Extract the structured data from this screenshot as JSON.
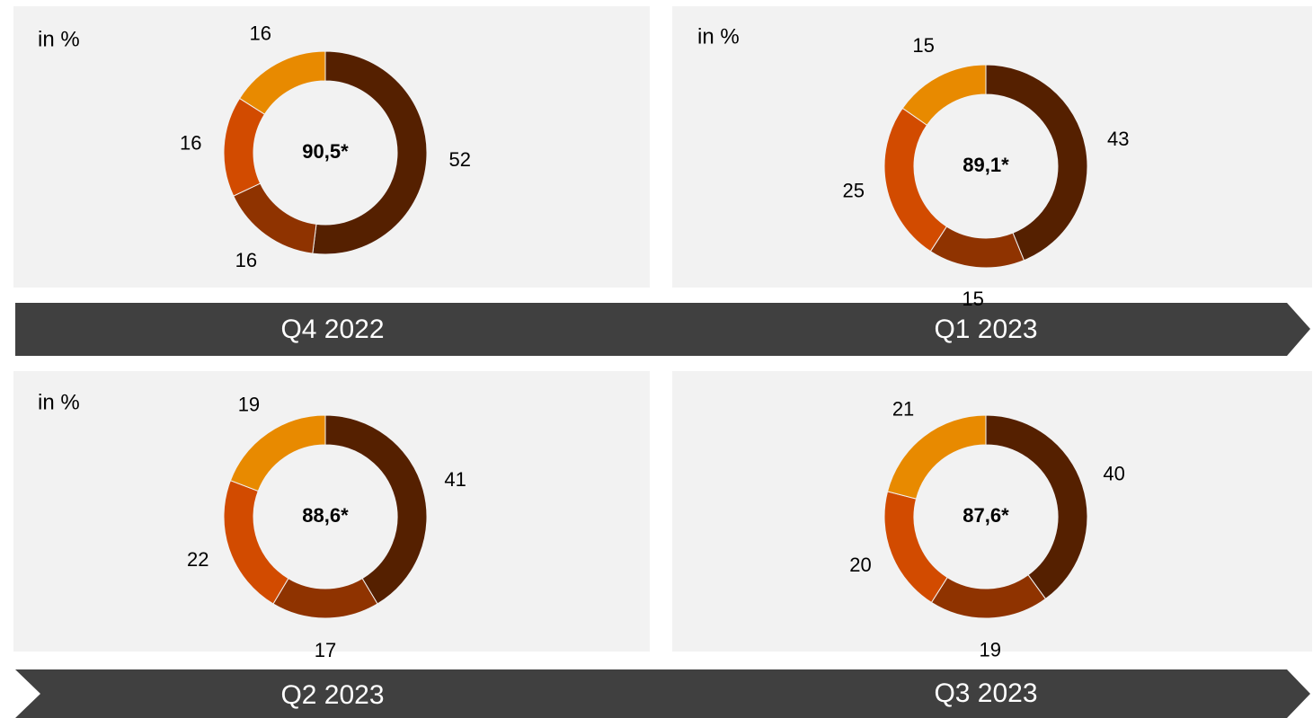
{
  "chart_data": [
    {
      "type": "donut",
      "title": "Q4 2022",
      "unit_label": "in %",
      "center_label": "90,5*",
      "values": [
        52,
        16,
        16,
        16
      ],
      "colors": [
        "#552000",
        "#8f3300",
        "#d24b00",
        "#e88a00"
      ]
    },
    {
      "type": "donut",
      "title": "Q1 2023",
      "unit_label": "in %",
      "center_label": "89,1*",
      "values": [
        43,
        15,
        25,
        15
      ],
      "colors": [
        "#552000",
        "#8f3300",
        "#d24b00",
        "#e88a00"
      ]
    },
    {
      "type": "donut",
      "title": "Q2 2023",
      "unit_label": "in %",
      "center_label": "88,6*",
      "values": [
        41,
        17,
        22,
        19
      ],
      "colors": [
        "#552000",
        "#8f3300",
        "#d24b00",
        "#e88a00"
      ]
    },
    {
      "type": "donut",
      "title": "Q3 2023",
      "center_label": "87,6*",
      "values": [
        40,
        19,
        20,
        21
      ],
      "colors": [
        "#552000",
        "#8f3300",
        "#d24b00",
        "#e88a00"
      ]
    }
  ]
}
